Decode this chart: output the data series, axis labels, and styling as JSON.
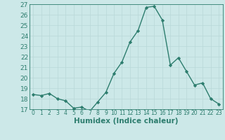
{
  "x": [
    0,
    1,
    2,
    3,
    4,
    5,
    6,
    7,
    8,
    9,
    10,
    11,
    12,
    13,
    14,
    15,
    16,
    17,
    18,
    19,
    20,
    21,
    22,
    23
  ],
  "y": [
    18.4,
    18.3,
    18.5,
    18.0,
    17.8,
    17.1,
    17.2,
    16.8,
    17.7,
    18.6,
    20.4,
    21.5,
    23.4,
    24.5,
    26.7,
    26.8,
    25.5,
    21.2,
    21.9,
    20.6,
    19.3,
    19.5,
    18.0,
    17.5
  ],
  "xlim": [
    -0.5,
    23.5
  ],
  "ylim": [
    17,
    27
  ],
  "yticks": [
    17,
    18,
    19,
    20,
    21,
    22,
    23,
    24,
    25,
    26,
    27
  ],
  "xticks": [
    0,
    1,
    2,
    3,
    4,
    5,
    6,
    7,
    8,
    9,
    10,
    11,
    12,
    13,
    14,
    15,
    16,
    17,
    18,
    19,
    20,
    21,
    22,
    23
  ],
  "xlabel": "Humidex (Indice chaleur)",
  "line_color": "#2d7d6e",
  "marker": "D",
  "marker_size": 2.2,
  "bg_color": "#cce8e8",
  "grid_color": "#b8d8d8",
  "tick_color": "#2d7d6e",
  "label_color": "#2d7d6e",
  "xlabel_fontsize": 7.5,
  "ytick_fontsize": 6.5,
  "xtick_fontsize": 5.5,
  "linewidth": 1.0
}
